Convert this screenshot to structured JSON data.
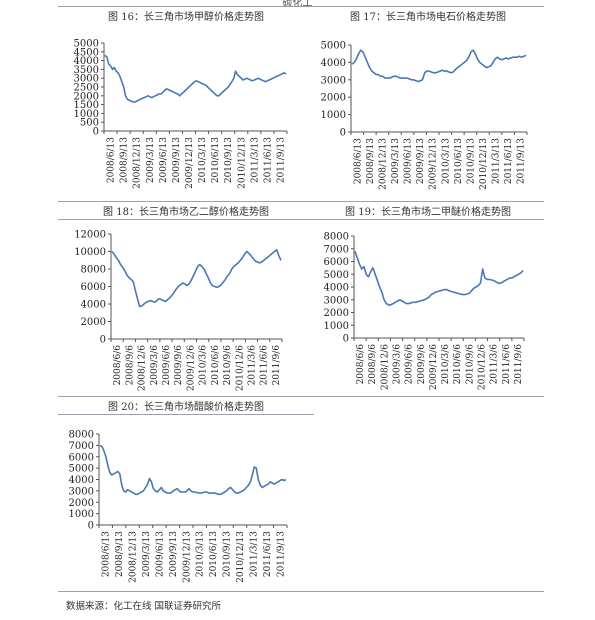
{
  "top_cut_text": "碳化工",
  "footer": {
    "source": "数据来源：化工在线  国联证券研究所"
  },
  "chart_data": [
    {
      "id": "c16",
      "type": "line",
      "title": "图 16：长三角市场甲醇价格走势图",
      "y_ticks": [
        0,
        500,
        1000,
        1500,
        2000,
        2500,
        3000,
        3500,
        4000,
        4500,
        5000
      ],
      "x_labels": [
        "2008/6/13",
        "2008/9/13",
        "2008/12/13",
        "2009/3/13",
        "2009/6/13",
        "2009/9/13",
        "2009/12/13",
        "2010/3/13",
        "2010/6/13",
        "2010/9/13",
        "2010/12/13",
        "2011/3/13",
        "2011/6/13",
        "2011/9/13"
      ],
      "series": [
        {
          "color": "#4a78b5",
          "values": [
            4300,
            4200,
            3800,
            3700,
            3500,
            3600,
            3400,
            3300,
            3100,
            2800,
            2500,
            2000,
            1800,
            1750,
            1700,
            1650,
            1650,
            1700,
            1750,
            1800,
            1850,
            1900,
            1950,
            2000,
            1950,
            1900,
            1950,
            2000,
            2050,
            2100,
            2100,
            2200,
            2300,
            2400,
            2350,
            2300,
            2250,
            2200,
            2150,
            2100,
            2000,
            2100,
            2200,
            2300,
            2400,
            2500,
            2600,
            2700,
            2800,
            2850,
            2800,
            2750,
            2700,
            2650,
            2600,
            2500,
            2400,
            2300,
            2200,
            2100,
            2000,
            2000,
            2100,
            2200,
            2300,
            2400,
            2500,
            2650,
            2800,
            3000,
            3400,
            3200,
            3100,
            3000,
            2900,
            2950,
            3000,
            2950,
            2900,
            2850,
            2900,
            2950,
            3000,
            2950,
            2900,
            2850,
            2800,
            2850,
            2900,
            2950,
            3000,
            3050,
            3100,
            3150,
            3200,
            3250,
            3300,
            3250
          ]
        }
      ]
    },
    {
      "id": "c17",
      "type": "line",
      "title": "图 17：长三角市场电石价格走势图",
      "y_ticks": [
        0,
        1000,
        2000,
        3000,
        4000,
        5000
      ],
      "x_labels": [
        "2008/6/13",
        "2008/9/13",
        "2008/12/13",
        "2009/3/13",
        "2009/6/13",
        "2009/9/13",
        "2009/12/13",
        "2010/3/13",
        "2010/6/13",
        "2010/9/13",
        "2010/12/13",
        "2011/3/13",
        "2011/6/13",
        "2011/9/13"
      ],
      "series": [
        {
          "color": "#4a78b5",
          "values": [
            3900,
            4000,
            4200,
            4500,
            4700,
            4600,
            4300,
            4000,
            3700,
            3500,
            3400,
            3300,
            3300,
            3200,
            3200,
            3100,
            3100,
            3100,
            3150,
            3200,
            3200,
            3150,
            3100,
            3100,
            3100,
            3100,
            3050,
            3000,
            3000,
            2950,
            2900,
            2950,
            3000,
            3400,
            3500,
            3500,
            3450,
            3400,
            3400,
            3450,
            3500,
            3550,
            3500,
            3500,
            3450,
            3400,
            3450,
            3600,
            3700,
            3800,
            3900,
            4000,
            4100,
            4300,
            4600,
            4700,
            4500,
            4200,
            4000,
            3900,
            3800,
            3700,
            3750,
            3800,
            4000,
            4200,
            4300,
            4200,
            4150,
            4200,
            4250,
            4200,
            4250,
            4300,
            4300,
            4300,
            4350,
            4300,
            4350,
            4400
          ]
        }
      ]
    },
    {
      "id": "c18",
      "type": "line",
      "title": "图 18：长三角市场乙二醇价格走势图",
      "y_ticks": [
        0,
        2000,
        4000,
        6000,
        8000,
        10000,
        12000
      ],
      "x_labels": [
        "2008/6/6",
        "2008/9/6",
        "2008/12/6",
        "2009/3/6",
        "2009/6/6",
        "2009/9/6",
        "2009/12/6",
        "2010/3/6",
        "2010/6/6",
        "2010/9/6",
        "2010/12/6",
        "2011/3/6",
        "2011/6/6",
        "2011/9/6"
      ],
      "series": [
        {
          "color": "#4a78b5",
          "values": [
            10000,
            9700,
            9300,
            9000,
            8500,
            8200,
            7800,
            7300,
            7000,
            6800,
            6500,
            5500,
            4500,
            3700,
            3800,
            4000,
            4200,
            4300,
            4400,
            4300,
            4200,
            4400,
            4600,
            4500,
            4400,
            4300,
            4500,
            4700,
            5000,
            5300,
            5700,
            6000,
            6200,
            6400,
            6300,
            6100,
            6300,
            6700,
            7200,
            7700,
            8300,
            8500,
            8300,
            8000,
            7500,
            7000,
            6400,
            6100,
            6000,
            5900,
            6000,
            6200,
            6500,
            6800,
            7200,
            7500,
            8000,
            8300,
            8500,
            8700,
            9000,
            9300,
            9700,
            10000,
            9800,
            9500,
            9200,
            8900,
            8800,
            8700,
            8800,
            9000,
            9200,
            9400,
            9600,
            9800,
            10000,
            10200,
            9500,
            9000
          ]
        }
      ]
    },
    {
      "id": "c19",
      "type": "line",
      "title": "图 19：长三角市场二甲醚价格走势图",
      "y_ticks": [
        0,
        1000,
        2000,
        3000,
        4000,
        5000,
        6000,
        7000,
        8000
      ],
      "x_labels": [
        "2008/6/6",
        "2008/9/6",
        "2008/12/6",
        "2009/3/6",
        "2009/6/6",
        "2009/9/6",
        "2009/12/6",
        "2010/3/6",
        "2010/6/6",
        "2010/9/6",
        "2010/12/6",
        "2011/3/6",
        "2011/6/6",
        "2011/9/6"
      ],
      "series": [
        {
          "color": "#4a78b5",
          "values": [
            6800,
            6300,
            5800,
            5400,
            5600,
            5000,
            4800,
            5200,
            5500,
            5000,
            4500,
            4000,
            3600,
            3000,
            2700,
            2600,
            2600,
            2700,
            2800,
            2900,
            3000,
            2900,
            2800,
            2700,
            2700,
            2750,
            2800,
            2800,
            2850,
            2900,
            2950,
            3000,
            3100,
            3200,
            3400,
            3500,
            3600,
            3650,
            3700,
            3750,
            3800,
            3800,
            3700,
            3650,
            3600,
            3550,
            3500,
            3450,
            3400,
            3400,
            3450,
            3500,
            3700,
            3900,
            4000,
            4100,
            4300,
            5400,
            4700,
            4600,
            4600,
            4550,
            4500,
            4400,
            4300,
            4300,
            4400,
            4500,
            4600,
            4700,
            4700,
            4800,
            4900,
            5000,
            5100,
            5300
          ]
        }
      ]
    },
    {
      "id": "c20",
      "type": "line",
      "title": "图 20：长三角市场醋酸价格走势图",
      "y_ticks": [
        0,
        1000,
        2000,
        3000,
        4000,
        5000,
        6000,
        7000,
        8000
      ],
      "x_labels": [
        "2008/6/13",
        "2008/9/13",
        "2008/12/13",
        "2009/3/13",
        "2009/6/13",
        "2009/9/13",
        "2009/12/13",
        "2010/3/13",
        "2010/6/13",
        "2010/9/13",
        "2010/12/13",
        "2011/3/13",
        "2011/6/13",
        "2011/9/13"
      ],
      "series": [
        {
          "color": "#4a78b5",
          "values": [
            7000,
            6900,
            6500,
            6000,
            5200,
            4600,
            4400,
            4500,
            4600,
            4700,
            4500,
            3500,
            3000,
            2900,
            3100,
            3000,
            2900,
            2800,
            2700,
            2700,
            2800,
            2900,
            3000,
            3300,
            3600,
            4100,
            3800,
            3200,
            3000,
            2900,
            3100,
            3300,
            3000,
            2900,
            2800,
            2800,
            2850,
            3000,
            3100,
            3200,
            3000,
            2900,
            2900,
            2900,
            3000,
            3200,
            3000,
            2900,
            2900,
            2850,
            2800,
            2800,
            2850,
            2900,
            2900,
            2800,
            2800,
            2800,
            2800,
            2750,
            2700,
            2700,
            2800,
            2900,
            3000,
            3200,
            3300,
            3100,
            2900,
            2800,
            2800,
            2900,
            3000,
            3100,
            3300,
            3500,
            3800,
            4400,
            5100,
            5000,
            4000,
            3500,
            3300,
            3400,
            3500,
            3600,
            3800,
            3700,
            3600,
            3700,
            3800,
            3900,
            4000,
            3900,
            4000
          ]
        }
      ]
    }
  ]
}
